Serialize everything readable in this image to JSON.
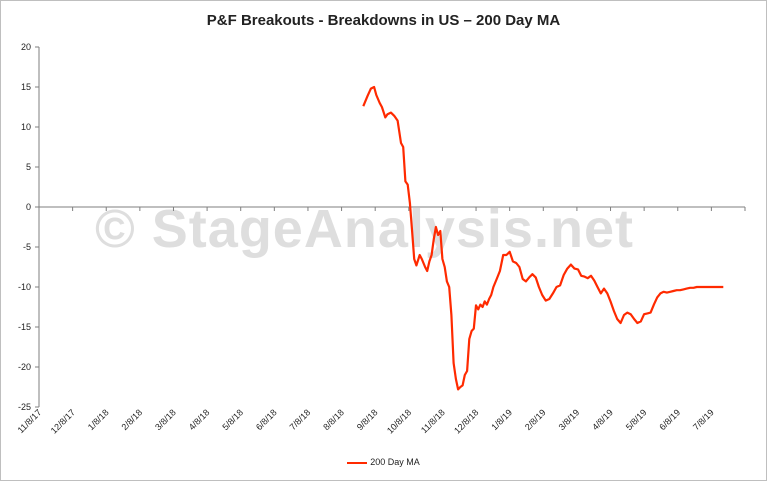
{
  "chart_data": {
    "type": "line",
    "title": "P&F Breakouts - Breakdowns in US – 200 Day MA",
    "watermark": "© StageAnalysis.net",
    "ylim": [
      -25,
      20
    ],
    "yticks": [
      20,
      15,
      10,
      5,
      0,
      -5,
      -10,
      -15,
      -20,
      -25
    ],
    "x_tick_labels": [
      "11/8/17",
      "12/8/17",
      "1/8/18",
      "2/8/18",
      "3/8/18",
      "4/8/18",
      "5/8/18",
      "6/8/18",
      "7/8/18",
      "8/8/18",
      "9/8/18",
      "10/8/18",
      "11/8/18",
      "12/8/18",
      "1/8/19",
      "2/8/19",
      "3/8/19",
      "4/8/19",
      "5/8/19",
      "6/8/19",
      "7/8/19"
    ],
    "grid": false,
    "legend_position": "bottom",
    "series": [
      {
        "name": "200 Day MA",
        "color": "#ff2a00",
        "x": [
          "8/28/18",
          "9/1/18",
          "9/4/18",
          "9/7/18",
          "9/9/18",
          "9/12/18",
          "9/14/18",
          "9/17/18",
          "9/19/18",
          "9/22/18",
          "9/25/18",
          "9/28/18",
          "10/1/18",
          "10/3/18",
          "10/5/18",
          "10/7/18",
          "10/9/18",
          "10/11/18",
          "10/13/18",
          "10/15/18",
          "10/18/18",
          "10/20/18",
          "10/23/18",
          "10/25/18",
          "10/27/18",
          "10/29/18",
          "10/31/18",
          "11/2/18",
          "11/4/18",
          "11/6/18",
          "11/8/18",
          "11/10/18",
          "11/12/18",
          "11/14/18",
          "11/16/18",
          "11/18/18",
          "11/20/18",
          "11/22/18",
          "11/24/18",
          "11/26/18",
          "11/28/18",
          "11/30/18",
          "12/2/18",
          "12/4/18",
          "12/6/18",
          "12/8/18",
          "12/10/18",
          "12/12/18",
          "12/14/18",
          "12/16/18",
          "12/18/18",
          "12/20/18",
          "12/22/18",
          "12/24/18",
          "12/27/18",
          "12/30/18",
          "1/2/19",
          "1/5/19",
          "1/8/19",
          "1/11/19",
          "1/14/19",
          "1/17/19",
          "1/20/19",
          "1/23/19",
          "1/26/19",
          "1/29/19",
          "2/1/19",
          "2/4/19",
          "2/7/19",
          "2/10/19",
          "2/13/19",
          "2/16/19",
          "2/19/19",
          "2/22/19",
          "2/25/19",
          "2/28/19",
          "3/3/19",
          "3/6/19",
          "3/9/19",
          "3/12/19",
          "3/15/19",
          "3/18/19",
          "3/21/19",
          "3/24/19",
          "3/27/19",
          "3/30/19",
          "4/2/19",
          "4/5/19",
          "4/8/19",
          "4/11/19",
          "4/14/19",
          "4/17/19",
          "4/20/19",
          "4/23/19",
          "4/26/19",
          "4/29/19",
          "5/2/19",
          "5/5/19",
          "5/8/19",
          "5/11/19",
          "5/14/19",
          "5/17/19",
          "5/20/19",
          "5/23/19",
          "5/26/19",
          "5/29/19",
          "6/1/19",
          "6/4/19",
          "6/7/19",
          "6/10/19",
          "6/13/19",
          "6/16/19",
          "6/19/19",
          "6/22/19",
          "6/25/19",
          "6/28/19",
          "7/1/19",
          "7/4/19",
          "7/7/19",
          "7/10/19",
          "7/13/19",
          "7/16/19",
          "7/19/19"
        ],
        "values": [
          12.6,
          13.9,
          14.8,
          15.0,
          14.0,
          13.0,
          12.5,
          11.2,
          11.6,
          11.8,
          11.4,
          10.8,
          8.0,
          7.5,
          3.2,
          2.8,
          0.5,
          -3.0,
          -6.5,
          -7.3,
          -6.0,
          -6.5,
          -7.5,
          -8.0,
          -6.8,
          -6.0,
          -4.0,
          -2.5,
          -3.5,
          -3.0,
          -6.5,
          -7.5,
          -9.3,
          -10.0,
          -13.5,
          -19.5,
          -21.5,
          -22.8,
          -22.5,
          -22.3,
          -21.0,
          -20.5,
          -16.5,
          -15.5,
          -15.2,
          -12.3,
          -12.8,
          -12.2,
          -12.5,
          -11.8,
          -12.2,
          -11.5,
          -11.0,
          -10.0,
          -9.0,
          -8.0,
          -6.0,
          -6.0,
          -5.6,
          -6.8,
          -7.0,
          -7.5,
          -9.0,
          -9.3,
          -8.8,
          -8.4,
          -8.8,
          -10.0,
          -11.0,
          -11.7,
          -11.5,
          -10.8,
          -10.0,
          -9.8,
          -8.5,
          -7.7,
          -7.2,
          -7.7,
          -7.8,
          -8.6,
          -8.7,
          -8.9,
          -8.6,
          -9.2,
          -10.0,
          -10.8,
          -10.2,
          -10.8,
          -11.8,
          -13.0,
          -14.0,
          -14.5,
          -13.5,
          -13.2,
          -13.4,
          -14.0,
          -14.5,
          -14.3,
          -13.4,
          -13.3,
          -13.2,
          -12.2,
          -11.3,
          -10.8,
          -10.6,
          -10.7,
          -10.6,
          -10.5,
          -10.4,
          -10.4,
          -10.3,
          -10.2,
          -10.1,
          -10.1,
          -10.0,
          -10.0,
          -10.0,
          -10.0,
          -10.0,
          -10.0,
          -10.0,
          -10.0,
          -10.0
        ]
      }
    ]
  }
}
